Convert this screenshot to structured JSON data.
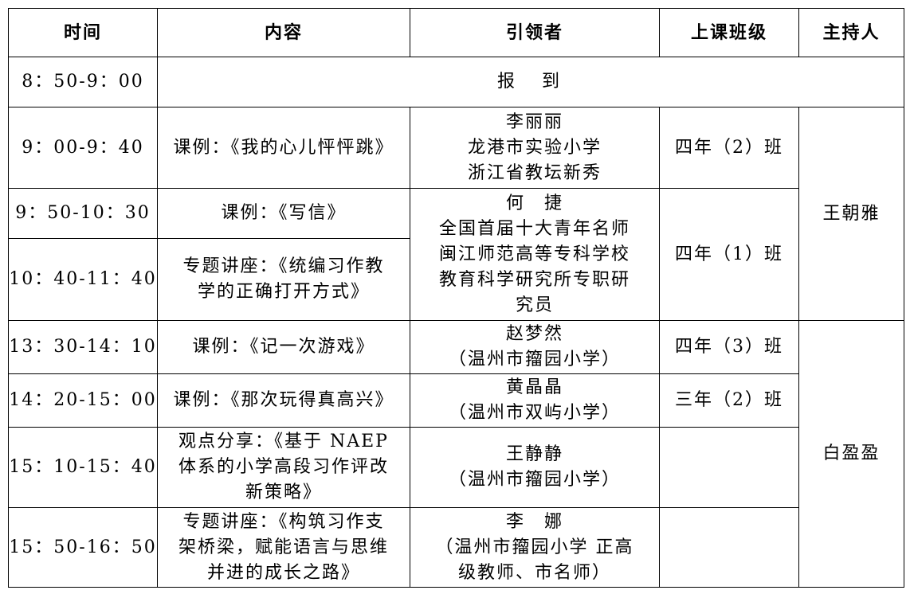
{
  "headers": [
    "时间",
    "内容",
    "引领者",
    "上课班级",
    "主持人"
  ],
  "rows": [
    {
      "time": "8：50-9：00",
      "content": "报　到"
    },
    {
      "time": "9：00-9：40",
      "content": "课例：《我的心儿怦怦跳》",
      "leader": "李丽丽\n龙港市实验小学\n浙江省教坛新秀",
      "class": "四年（2）班",
      "host": "王朝雅"
    },
    {
      "time": "9：50-10：30",
      "content": "课例：《写信》",
      "leader": "何　捷\n全国首届十大青年名师\n闽江师范高等专科学校\n教育科学研究所专职研\n究员",
      "class": "四年（1）班"
    },
    {
      "time": "10：40-11：40",
      "content": "专题讲座：《统编习作教\n学的正确打开方式》"
    },
    {
      "time": "13：30-14：10",
      "content": "课例：《记一次游戏》",
      "leader": "赵梦然\n（温州市籀园小学）",
      "class": "四年（3）班",
      "host": "白盈盈"
    },
    {
      "time": "14：20-15：00",
      "content": "课例：《那次玩得真高兴》",
      "leader": "黄晶晶\n（温州市双屿小学）",
      "class": "三年（2）班"
    },
    {
      "time": "15：10-15：40",
      "content": "观点分享：《基于 NAEP\n体系的小学高段习作评改\n新策略》",
      "leader": "王静静\n（温州市籀园小学）",
      "class": ""
    },
    {
      "time": "15：50-16：50",
      "content": "专题讲座：《构筑习作支\n架桥梁，赋能语言与思维\n并进的成长之路》",
      "leader": "李　娜\n（温州市籀园小学 正高\n级教师、市名师）",
      "class": ""
    }
  ]
}
